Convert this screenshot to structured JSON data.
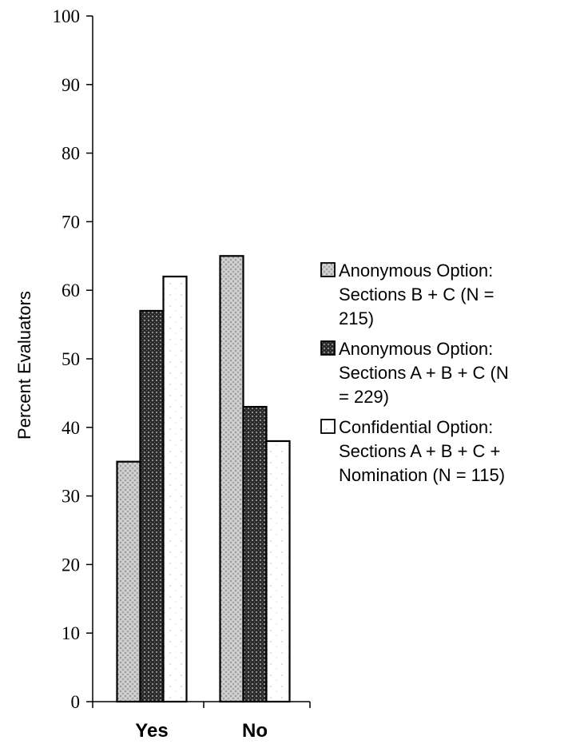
{
  "chart_data": {
    "type": "bar",
    "title": "",
    "xlabel": "",
    "ylabel": "Percent Evaluators",
    "ylim": [
      0,
      100
    ],
    "yticks": [
      0,
      10,
      20,
      30,
      40,
      50,
      60,
      70,
      80,
      90,
      100
    ],
    "categories": [
      "Yes",
      "No"
    ],
    "grid": false,
    "legend_position": "right",
    "series": [
      {
        "name_lines": [
          "Anonymous Option:",
          "Sections B + C (N =",
          "215)"
        ],
        "values": [
          35,
          65
        ],
        "pattern": "light-stipple",
        "color": "#b8b8b8"
      },
      {
        "name_lines": [
          "Anonymous Option:",
          "Sections A + B + C (N",
          "= 229)"
        ],
        "values": [
          57,
          43
        ],
        "pattern": "dark-crosshatch",
        "color": "#3a3a3a"
      },
      {
        "name_lines": [
          "Confidential Option:",
          "Sections A + B + C +",
          "Nomination (N = 115)"
        ],
        "values": [
          62,
          38
        ],
        "pattern": "sparse-dots",
        "color": "#ffffff"
      }
    ]
  }
}
